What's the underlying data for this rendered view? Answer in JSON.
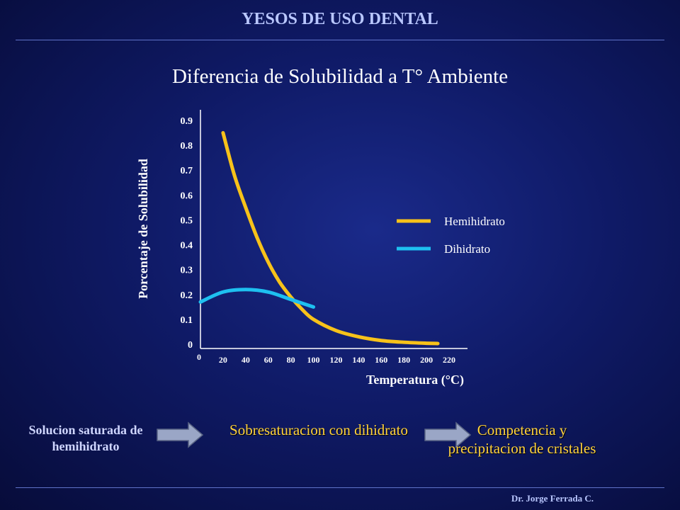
{
  "header": {
    "title": "YESOS DE USO DENTAL"
  },
  "slide": {
    "title": "Diferencia de Solubilidad a T° Ambiente"
  },
  "chart_data": {
    "type": "line",
    "title": "Diferencia de Solubilidad a T° Ambiente",
    "xlabel": "Temperatura (°C)",
    "ylabel": "Porcentaje de Solubilidad",
    "xlim": [
      0,
      220
    ],
    "ylim": [
      0,
      0.9
    ],
    "x_ticks": [
      "0",
      "20",
      "40",
      "60",
      "80",
      "100",
      "120",
      "140",
      "160",
      "180",
      "200",
      "220"
    ],
    "y_ticks": [
      "0",
      "0.1",
      "0.2",
      "0.3",
      "0.4",
      "0.5",
      "0.6",
      "0.7",
      "0.8",
      "0.9"
    ],
    "grid": false,
    "legend_position": "right",
    "series": [
      {
        "name": "Hemihidrato",
        "color": "#f7c21a",
        "x": [
          20,
          30,
          40,
          50,
          60,
          70,
          80,
          90,
          100,
          120,
          140,
          160,
          180,
          200,
          210
        ],
        "y": [
          0.85,
          0.68,
          0.55,
          0.43,
          0.33,
          0.25,
          0.19,
          0.14,
          0.1,
          0.055,
          0.03,
          0.015,
          0.008,
          0.004,
          0.003
        ]
      },
      {
        "name": "Dihidrato",
        "color": "#1ec0f0",
        "x": [
          0,
          20,
          40,
          60,
          80,
          100
        ],
        "y": [
          0.17,
          0.21,
          0.22,
          0.21,
          0.18,
          0.15
        ]
      }
    ]
  },
  "flow": {
    "step1": "Solucion  saturada de hemihidrato",
    "step2": "Sobresaturacion con dihidrato",
    "step3": "Competencia y precipitacion de cristales"
  },
  "footer": {
    "author": "Dr. Jorge Ferrada C."
  }
}
